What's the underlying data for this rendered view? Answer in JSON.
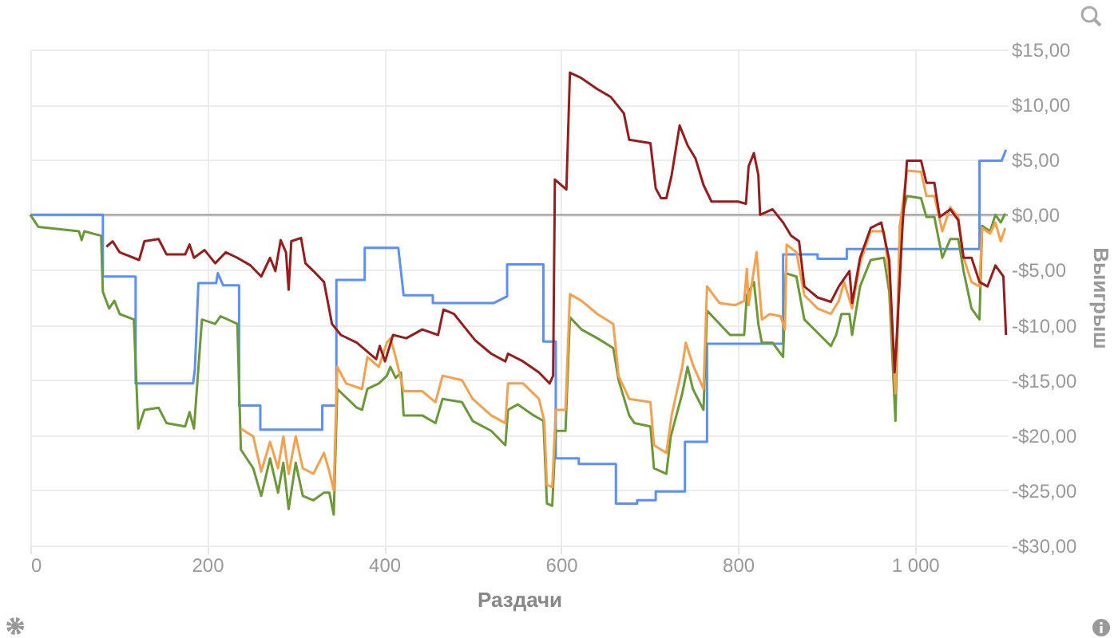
{
  "chart_data": {
    "type": "line",
    "xlabel": "Раздачи",
    "ylabel": "Выигрыш",
    "xlim": [
      0,
      1105
    ],
    "ylim": [
      -30,
      15
    ],
    "xticks": [
      0,
      200,
      400,
      600,
      800,
      {
        "value": 1000,
        "label": "1 000"
      }
    ],
    "yticks": [
      {
        "value": 15,
        "label": "$15,00"
      },
      {
        "value": 10,
        "label": "$10,00"
      },
      {
        "value": 5,
        "label": "$5,00"
      },
      {
        "value": 0,
        "label": "$0,00"
      },
      {
        "value": -5,
        "label": "-$5,00"
      },
      {
        "value": -10,
        "label": "-$10,00"
      },
      {
        "value": -15,
        "label": "-$15,00"
      },
      {
        "value": -20,
        "label": "-$20,00"
      },
      {
        "value": -25,
        "label": "-$25,00"
      },
      {
        "value": -30,
        "label": "-$30,00"
      }
    ],
    "grid": true,
    "line_style": "solid",
    "ref_lines": [
      {
        "axis": "y",
        "value": 0,
        "color": "#a0a0a0"
      }
    ],
    "series": [
      {
        "color": "#5b8ff9",
        "x": [
          0,
          82,
          82,
          119,
          119,
          184,
          186,
          190,
          210,
          212,
          218,
          236,
          236,
          260,
          260,
          330,
          330,
          346,
          346,
          378,
          378,
          416,
          422,
          455,
          455,
          524,
          539,
          539,
          580,
          580,
          594,
          594,
          620,
          620,
          662,
          662,
          686,
          686,
          707,
          707,
          740,
          740,
          765,
          765,
          851,
          851,
          890,
          890,
          923,
          923,
          1073,
          1073,
          1098,
          1103
        ],
        "values": [
          0,
          0,
          -5.6,
          -5.6,
          -15.3,
          -15.3,
          -14,
          -6.2,
          -6.2,
          -5.3,
          -6.4,
          -6.4,
          -17.3,
          -17.3,
          -19.5,
          -19.5,
          -17.3,
          -17.3,
          -5.9,
          -5.9,
          -3,
          -3,
          -7.3,
          -7.3,
          -8,
          -8,
          -7.4,
          -4.5,
          -4.5,
          -11.5,
          -11.5,
          -22.1,
          -22.1,
          -22.6,
          -22.6,
          -26.2,
          -26.2,
          -25.9,
          -25.9,
          -25.1,
          -25.1,
          -20.6,
          -20.6,
          -11.7,
          -11.7,
          -3.6,
          -3.6,
          -4,
          -4,
          -3.1,
          -3.1,
          4.9,
          4.9,
          5.9
        ]
      },
      {
        "color": "#6a9a35",
        "x": [
          0,
          9,
          55,
          58,
          61,
          80,
          82,
          89,
          95,
          101,
          117,
          122,
          129,
          145,
          154,
          175,
          180,
          185,
          194,
          209,
          215,
          234,
          238,
          252,
          261,
          271,
          280,
          286,
          292,
          300,
          308,
          320,
          332,
          338,
          343,
          347,
          369,
          375,
          381,
          394,
          403,
          407,
          413,
          419,
          422,
          443,
          458,
          466,
          488,
          500,
          521,
          537,
          540,
          551,
          569,
          580,
          584,
          590,
          594,
          605,
          610,
          623,
          641,
          659,
          665,
          677,
          683,
          701,
          705,
          719,
          724,
          737,
          743,
          749,
          761,
          765,
          791,
          807,
          810,
          818,
          823,
          827,
          839,
          851,
          854,
          866,
          875,
          890,
          905,
          911,
          917,
          926,
          929,
          938,
          950,
          965,
          971,
          978,
          983,
          991,
          1007,
          1013,
          1022,
          1031,
          1040,
          1049,
          1055,
          1064,
          1073,
          1076,
          1085,
          1091,
          1097,
          1102
        ],
        "values": [
          0,
          -1.1,
          -1.5,
          -2.3,
          -1.5,
          -1.9,
          -7,
          -8.5,
          -7.8,
          -9,
          -9.5,
          -19.4,
          -17.7,
          -17.5,
          -18.9,
          -19.2,
          -17.9,
          -19.4,
          -9.5,
          -9.9,
          -9.2,
          -9.9,
          -21.3,
          -23,
          -25.5,
          -22.1,
          -25.2,
          -22.5,
          -26.7,
          -22.5,
          -25.5,
          -25.9,
          -25.2,
          -25.2,
          -27.2,
          -15.8,
          -17.5,
          -17.7,
          -15.8,
          -15.3,
          -14.6,
          -13.8,
          -14.8,
          -14.3,
          -18.2,
          -18.2,
          -18.9,
          -16.7,
          -17,
          -18.7,
          -19.6,
          -20.9,
          -17.7,
          -17.2,
          -18.2,
          -18.7,
          -26.2,
          -26.4,
          -19.6,
          -19.6,
          -9.3,
          -10.4,
          -11.2,
          -12.1,
          -15,
          -18.2,
          -18.9,
          -19.2,
          -23,
          -23.5,
          -20.1,
          -16.2,
          -13.8,
          -15.8,
          -17.7,
          -8.7,
          -10.9,
          -10.9,
          -7.3,
          -6.1,
          -9.9,
          -11.6,
          -11.6,
          -12.9,
          -5.3,
          -5.6,
          -9.5,
          -10.7,
          -11.9,
          -10.9,
          -9,
          -9,
          -10.9,
          -6.5,
          -4.1,
          -3.9,
          -7,
          -18.7,
          -1,
          1.7,
          1.5,
          -0.2,
          -0.2,
          -3.9,
          -2.2,
          -2.2,
          -5.1,
          -8.5,
          -9.5,
          -1,
          -1.5,
          0,
          -0.7,
          0.1
        ]
      },
      {
        "color": "#f7a04b",
        "x": [
          238,
          252,
          261,
          271,
          280,
          286,
          292,
          300,
          308,
          320,
          332,
          338,
          343,
          347,
          357,
          375,
          381,
          394,
          403,
          407,
          413,
          422,
          443,
          458,
          466,
          488,
          500,
          521,
          537,
          540,
          557,
          575,
          581,
          584,
          590,
          594,
          605,
          610,
          623,
          641,
          659,
          665,
          677,
          701,
          705,
          719,
          725,
          737,
          741,
          749,
          761,
          765,
          779,
          797,
          807,
          810,
          812,
          821,
          824,
          827,
          836,
          848,
          853,
          855,
          866,
          875,
          890,
          905,
          914,
          920,
          929,
          938,
          950,
          965,
          971,
          978,
          983,
          991,
          1007,
          1013,
          1022,
          1031,
          1040,
          1049,
          1055,
          1064,
          1073,
          1076,
          1085,
          1091,
          1097,
          1102
        ],
        "values": [
          -19.4,
          -20.1,
          -23.3,
          -20.6,
          -23,
          -20.1,
          -23.5,
          -20.1,
          -23,
          -23.5,
          -21.6,
          -23.3,
          -25,
          -13.8,
          -15.3,
          -15.8,
          -12.9,
          -13.8,
          -11.6,
          -11.2,
          -12.9,
          -16,
          -16,
          -17,
          -14.6,
          -15,
          -16.7,
          -18.2,
          -18.9,
          -15.3,
          -15.3,
          -16.7,
          -18.7,
          -24.5,
          -24.7,
          -17.7,
          -17.7,
          -7.2,
          -7.8,
          -9,
          -9.9,
          -14.6,
          -16.7,
          -17,
          -20.9,
          -21.6,
          -18.2,
          -13.8,
          -11.6,
          -13.6,
          -15.8,
          -6.5,
          -8,
          -8.2,
          -7.8,
          -4.9,
          -8.2,
          -3.4,
          -6.5,
          -9.5,
          -9,
          -9.2,
          -10.4,
          -2.7,
          -3.4,
          -7.3,
          -8.5,
          -9,
          -7.8,
          -6.1,
          -8.5,
          -4.4,
          -1.5,
          -1.5,
          -5.6,
          -16.2,
          -1,
          4,
          3.9,
          1.7,
          1.7,
          -1.5,
          0.7,
          -0.2,
          -3.9,
          -6.1,
          -6.5,
          -1.2,
          -1.7,
          -0.7,
          -2.4,
          -1.2
        ]
      },
      {
        "color": "#9b1b1b",
        "x": [
          86,
          93,
          101,
          123,
          129,
          145,
          154,
          175,
          180,
          185,
          197,
          209,
          221,
          234,
          249,
          261,
          271,
          277,
          283,
          289,
          292,
          295,
          306,
          311,
          320,
          332,
          341,
          351,
          369,
          391,
          395,
          401,
          410,
          425,
          443,
          461,
          467,
          479,
          491,
          503,
          521,
          537,
          540,
          557,
          575,
          587,
          591,
          593,
          606,
          610,
          623,
          641,
          656,
          671,
          677,
          701,
          707,
          713,
          719,
          725,
          734,
          743,
          752,
          761,
          770,
          782,
          800,
          809,
          812,
          818,
          823,
          825,
          839,
          851,
          860,
          869,
          875,
          890,
          905,
          914,
          926,
          929,
          938,
          950,
          962,
          971,
          977,
          980,
          986,
          991,
          1007,
          1013,
          1022,
          1028,
          1040,
          1049,
          1055,
          1064,
          1073,
          1082,
          1091,
          1100,
          1103
        ],
        "values": [
          -2.9,
          -2.4,
          -3.4,
          -4.1,
          -2.4,
          -2.2,
          -3.6,
          -3.6,
          -2.7,
          -3.9,
          -3.2,
          -4.4,
          -3.4,
          -3.9,
          -4.6,
          -5.6,
          -3.9,
          -5.1,
          -2.3,
          -3.4,
          -6.8,
          -2.4,
          -2.1,
          -4.4,
          -5.1,
          -6.1,
          -9.9,
          -10.9,
          -11.6,
          -13.1,
          -11.9,
          -13.3,
          -10.9,
          -11.2,
          -10.4,
          -10.9,
          -8.6,
          -9,
          -10.2,
          -11.4,
          -12.6,
          -13.3,
          -12.6,
          -13.3,
          -14.3,
          -15.3,
          -14.6,
          3.2,
          2.3,
          12.9,
          12.4,
          11.4,
          10.7,
          9.2,
          6.8,
          6.5,
          2.4,
          1.5,
          1.5,
          3.6,
          8.1,
          6.3,
          5.1,
          2.7,
          1.2,
          1.2,
          1.2,
          1,
          4.4,
          5.6,
          3.6,
          0,
          0.5,
          -0.7,
          -1.9,
          -2.4,
          -6.5,
          -7.5,
          -7.9,
          -6.5,
          -5.1,
          -8,
          -3.9,
          -1.2,
          -0.7,
          -4.1,
          -14.3,
          -10.4,
          -1,
          4.9,
          4.9,
          2.9,
          2.9,
          -0.2,
          0.5,
          -0.5,
          -3.9,
          -3.9,
          -6.1,
          -6.5,
          -4.6,
          -5.6,
          -10.9
        ]
      }
    ]
  }
}
